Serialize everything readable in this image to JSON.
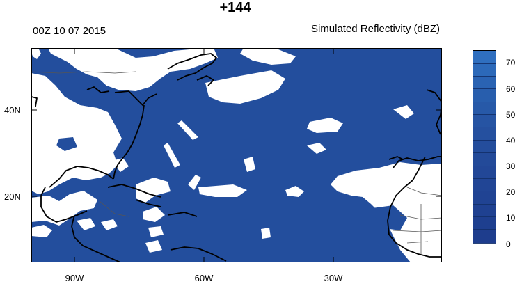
{
  "title": "+144",
  "date_label": "00Z 10 07 2015",
  "field_label": "Simulated Reflectivity (dBZ)",
  "lat_labels": [
    "40N",
    "20N"
  ],
  "lon_labels": [
    "90W",
    "60W",
    "30W"
  ],
  "legend": {
    "ticks": [
      "70",
      "60",
      "50",
      "40",
      "30",
      "20",
      "10",
      "0"
    ],
    "colors": {
      "no_echo": "#ffffff",
      "low": "#1e4a99",
      "high": "#2e6fc0"
    }
  },
  "map_colors": {
    "field": "#234e9d",
    "clear": "#ffffff",
    "coast": "#000000",
    "border": "#555555"
  }
}
